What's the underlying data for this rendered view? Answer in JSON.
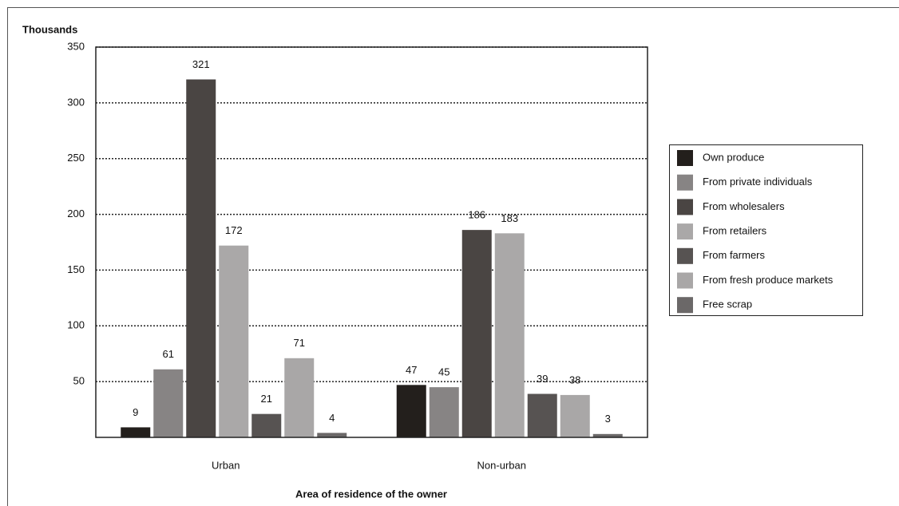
{
  "chart_data": {
    "type": "bar",
    "y_label": "Thousands",
    "x_label": "Area of residence of the owner",
    "categories": [
      "Urban",
      "Non-urban"
    ],
    "series": [
      {
        "name": "Own produce",
        "color": "#231f1c",
        "values": [
          9,
          47
        ]
      },
      {
        "name": "From private individuals",
        "color": "#878484",
        "values": [
          61,
          45
        ]
      },
      {
        "name": "From wholesalers",
        "color": "#4a4543",
        "values": [
          321,
          186
        ]
      },
      {
        "name": "From retailers",
        "color": "#aaa8a8",
        "values": [
          172,
          183
        ]
      },
      {
        "name": "From farmers",
        "color": "#575352",
        "values": [
          21,
          39
        ]
      },
      {
        "name": "From fresh produce markets",
        "color": "#a9a7a7",
        "values": [
          71,
          38
        ]
      },
      {
        "name": "Free scrap",
        "color": "#6b6868",
        "values": [
          4,
          3
        ]
      }
    ],
    "ylim": [
      0,
      350
    ],
    "yticks": [
      50,
      100,
      150,
      200,
      250,
      300,
      350
    ],
    "grid": true
  }
}
